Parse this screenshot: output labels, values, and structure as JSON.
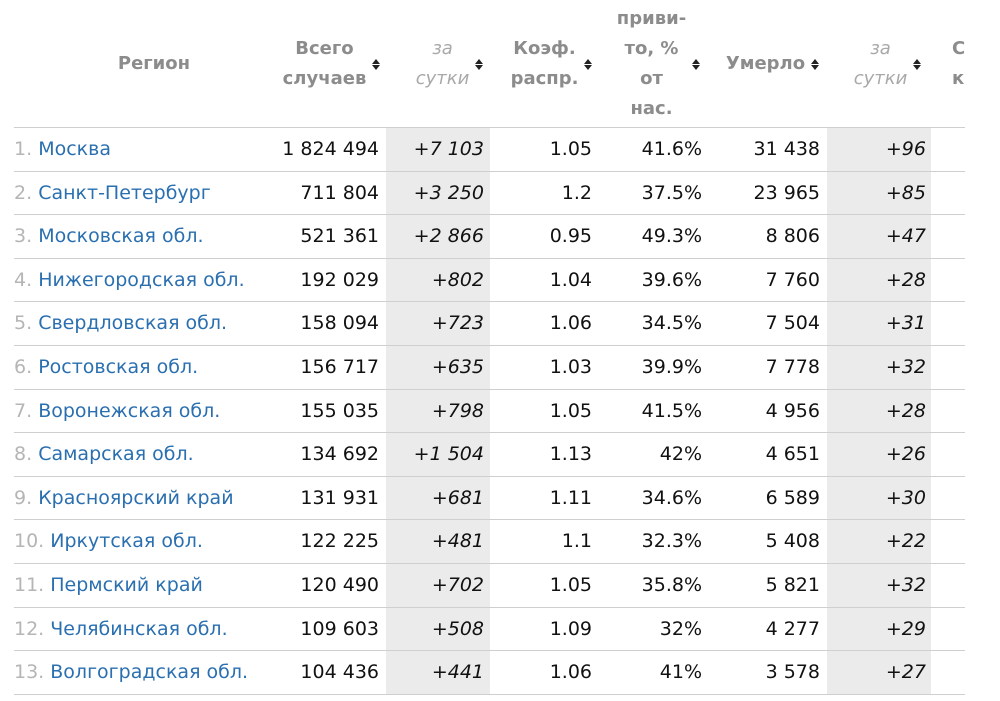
{
  "headers": {
    "region": "Регион",
    "total_line1": "Всего",
    "total_line2": "случаев",
    "daily_cases_line1": "за",
    "daily_cases_line2": "сутки",
    "coef_line1": "Коэф.",
    "coef_line2": "распр.",
    "vacc_line1": "приви-",
    "vacc_line2": "то, %",
    "vacc_line3": "от",
    "vacc_line4": "нас.",
    "deaths": "Умерло",
    "daily_deaths_line1": "за",
    "daily_deaths_line2": "сутки",
    "partial_line1": "С",
    "partial_line2": "к"
  },
  "rows": [
    {
      "rank": "1.",
      "region": "Москва",
      "total": "1 824 494",
      "daily": "+7 103",
      "coef": "1.05",
      "vacc": "41.6%",
      "deaths": "31 438",
      "daily_deaths": "+96"
    },
    {
      "rank": "2.",
      "region": "Санкт-Петербург",
      "total": "711 804",
      "daily": "+3 250",
      "coef": "1.2",
      "vacc": "37.5%",
      "deaths": "23 965",
      "daily_deaths": "+85"
    },
    {
      "rank": "3.",
      "region": "Московская обл.",
      "total": "521 361",
      "daily": "+2 866",
      "coef": "0.95",
      "vacc": "49.3%",
      "deaths": "8 806",
      "daily_deaths": "+47"
    },
    {
      "rank": "4.",
      "region": "Нижегородская обл.",
      "total": "192 029",
      "daily": "+802",
      "coef": "1.04",
      "vacc": "39.6%",
      "deaths": "7 760",
      "daily_deaths": "+28"
    },
    {
      "rank": "5.",
      "region": "Свердловская обл.",
      "total": "158 094",
      "daily": "+723",
      "coef": "1.06",
      "vacc": "34.5%",
      "deaths": "7 504",
      "daily_deaths": "+31"
    },
    {
      "rank": "6.",
      "region": "Ростовская обл.",
      "total": "156 717",
      "daily": "+635",
      "coef": "1.03",
      "vacc": "39.9%",
      "deaths": "7 778",
      "daily_deaths": "+32"
    },
    {
      "rank": "7.",
      "region": "Воронежская обл.",
      "total": "155 035",
      "daily": "+798",
      "coef": "1.05",
      "vacc": "41.5%",
      "deaths": "4 956",
      "daily_deaths": "+28"
    },
    {
      "rank": "8.",
      "region": "Самарская обл.",
      "total": "134 692",
      "daily": "+1 504",
      "coef": "1.13",
      "vacc": "42%",
      "deaths": "4 651",
      "daily_deaths": "+26"
    },
    {
      "rank": "9.",
      "region": "Красноярский край",
      "total": "131 931",
      "daily": "+681",
      "coef": "1.11",
      "vacc": "34.6%",
      "deaths": "6 589",
      "daily_deaths": "+30"
    },
    {
      "rank": "10.",
      "region": "Иркутская обл.",
      "total": "122 225",
      "daily": "+481",
      "coef": "1.1",
      "vacc": "32.3%",
      "deaths": "5 408",
      "daily_deaths": "+22"
    },
    {
      "rank": "11.",
      "region": "Пермский край",
      "total": "120 490",
      "daily": "+702",
      "coef": "1.05",
      "vacc": "35.8%",
      "deaths": "5 821",
      "daily_deaths": "+32"
    },
    {
      "rank": "12.",
      "region": "Челябинская обл.",
      "total": "109 603",
      "daily": "+508",
      "coef": "1.09",
      "vacc": "32%",
      "deaths": "4 277",
      "daily_deaths": "+29"
    },
    {
      "rank": "13.",
      "region": "Волгоградская обл.",
      "total": "104 436",
      "daily": "+441",
      "coef": "1.06",
      "vacc": "41%",
      "deaths": "3 578",
      "daily_deaths": "+27"
    }
  ],
  "colors": {
    "link": "#2a6fb0",
    "shade": "#ebebeb",
    "rank": "#b5b5b5",
    "header": "#8c8c8c"
  }
}
